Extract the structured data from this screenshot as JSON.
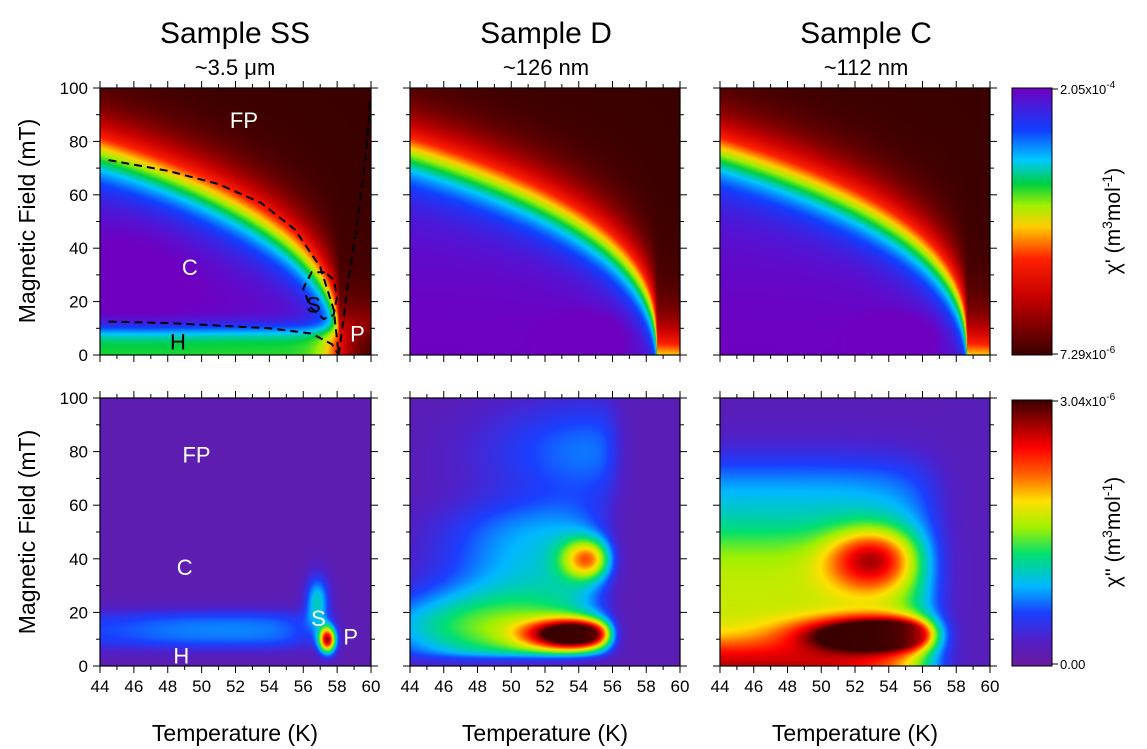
{
  "columns": [
    {
      "title": "Sample SS",
      "subtitle": "~3.5 μm"
    },
    {
      "title": "Sample D",
      "subtitle": "~126 nm"
    },
    {
      "title": "Sample C",
      "subtitle": "~112 nm"
    }
  ],
  "axes": {
    "xlabel": "Temperature (K)",
    "ylabel": "Magnetic Field (mT)",
    "xticks": [
      "44",
      "46",
      "48",
      "50",
      "52",
      "54",
      "56",
      "58",
      "60"
    ],
    "yticks": [
      "0",
      "20",
      "40",
      "60",
      "80",
      "100"
    ]
  },
  "colorbars": [
    {
      "label_main": "χ' (m",
      "label_sup1": "3",
      "label_mid": "mol",
      "label_sup2": "-1",
      "label_end": ")",
      "max_label": "2.05x10-4",
      "max_mant": "2.05x10",
      "max_exp": "-4",
      "min_label": "7.29x10-6",
      "min_mant": "7.29x10",
      "min_exp": "-6"
    },
    {
      "label_main": "χ'' (m",
      "label_sup1": "3",
      "label_mid": "mol",
      "label_sup2": "-1",
      "label_end": ")",
      "max_label": "3.04x10-6",
      "max_mant": "3.04x10",
      "max_exp": "-6",
      "min_label": "0.00"
    }
  ],
  "region_labels": {
    "top": [
      {
        "text": "FP",
        "T": 52.5,
        "B": 88
      },
      {
        "text": "C",
        "T": 49.3,
        "B": 33
      },
      {
        "text": "S",
        "T": 56.6,
        "B": 19
      },
      {
        "text": "P",
        "T": 59.2,
        "B": 8
      },
      {
        "text": "H",
        "T": 48.6,
        "B": 5
      }
    ],
    "bottom": [
      {
        "text": "FP",
        "T": 49.7,
        "B": 79
      },
      {
        "text": "C",
        "T": 49.0,
        "B": 37
      },
      {
        "text": "S",
        "T": 56.9,
        "B": 18
      },
      {
        "text": "P",
        "T": 58.8,
        "B": 11
      },
      {
        "text": "H",
        "T": 48.8,
        "B": 4
      }
    ]
  },
  "chart_data": [
    {
      "type": "heatmap",
      "panel": "Sample SS chi'",
      "x_range": [
        44,
        60
      ],
      "y_range": [
        0,
        100
      ],
      "xlabel": "",
      "ylabel": "Magnetic Field (mT)"
    },
    {
      "type": "heatmap",
      "panel": "Sample D chi'",
      "x_range": [
        44,
        60
      ],
      "y_range": [
        0,
        100
      ]
    },
    {
      "type": "heatmap",
      "panel": "Sample C chi'",
      "x_range": [
        44,
        60
      ],
      "y_range": [
        0,
        100
      ]
    },
    {
      "type": "heatmap",
      "panel": "Sample SS chi''",
      "x_range": [
        44,
        60
      ],
      "y_range": [
        0,
        100
      ],
      "xlabel": "Temperature (K)",
      "ylabel": "Magnetic Field (mT)"
    },
    {
      "type": "heatmap",
      "panel": "Sample D chi''",
      "x_range": [
        44,
        60
      ],
      "y_range": [
        0,
        100
      ],
      "xlabel": "Temperature (K)"
    },
    {
      "type": "heatmap",
      "panel": "Sample C chi''",
      "x_range": [
        44,
        60
      ],
      "y_range": [
        0,
        100
      ],
      "xlabel": "Temperature (K)"
    }
  ],
  "phase_boundaries": [
    {
      "name": "FP-C",
      "points": [
        [
          44.5,
          73
        ],
        [
          48,
          69
        ],
        [
          51,
          64
        ],
        [
          53.5,
          57
        ],
        [
          55.5,
          47
        ],
        [
          57,
          33
        ],
        [
          57.8,
          17
        ],
        [
          58.1,
          0
        ]
      ]
    },
    {
      "name": "C-H",
      "points": [
        [
          44.5,
          12.5
        ],
        [
          48,
          12
        ],
        [
          51,
          11
        ],
        [
          54,
          10
        ],
        [
          56.5,
          8
        ],
        [
          57.7,
          4
        ],
        [
          58.1,
          0
        ]
      ]
    },
    {
      "name": "S-pocket",
      "points": [
        [
          57.3,
          31
        ],
        [
          56.5,
          31
        ],
        [
          56.0,
          25
        ],
        [
          56.4,
          18
        ],
        [
          57.2,
          13.5
        ],
        [
          57.8,
          15
        ],
        [
          58.0,
          22
        ],
        [
          57.8,
          28
        ],
        [
          57.3,
          31
        ]
      ]
    },
    {
      "name": "P-FP",
      "points": [
        [
          58.1,
          0
        ],
        [
          58.6,
          25
        ],
        [
          59.2,
          50
        ],
        [
          59.7,
          75
        ],
        [
          59.95,
          95
        ]
      ]
    }
  ]
}
